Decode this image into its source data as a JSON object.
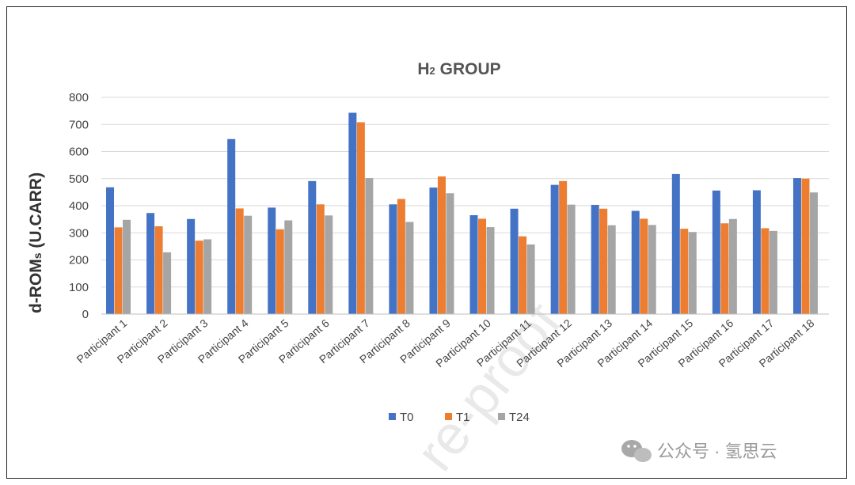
{
  "chart_data": {
    "type": "bar",
    "title_main": "H",
    "title_sub": "2",
    "title_rest": " GROUP",
    "ylabel_main": "d-ROM",
    "ylabel_sub": "s",
    "ylabel_rest": " (U.CARR)",
    "ylim": [
      0,
      800
    ],
    "yticks": [
      "0",
      "100",
      "200",
      "300",
      "400",
      "500",
      "600",
      "700",
      "800"
    ],
    "categories": [
      "Participant 1",
      "Participant 2",
      "Participant 3",
      "Participant 4",
      "Participant 5",
      "Participant 6",
      "Participant 7",
      "Participant 8",
      "Participant 9",
      "Participant 10",
      "Participant 11",
      "Participant 12",
      "Participant 13",
      "Participant 14",
      "Participant 15",
      "Participant 16",
      "Participant 17",
      "Participant 18"
    ],
    "series": [
      {
        "name": "T0",
        "color": "#4472C4",
        "values": [
          468,
          373,
          351,
          646,
          393,
          491,
          743,
          405,
          467,
          365,
          389,
          477,
          403,
          381,
          517,
          456,
          457,
          502
        ]
      },
      {
        "name": "T1",
        "color": "#ED7D31",
        "values": [
          320,
          324,
          271,
          390,
          313,
          405,
          708,
          425,
          508,
          352,
          287,
          491,
          389,
          352,
          315,
          335,
          317,
          500
        ]
      },
      {
        "name": "T24",
        "color": "#A5A5A5",
        "values": [
          348,
          228,
          276,
          363,
          346,
          364,
          502,
          340,
          446,
          321,
          257,
          404,
          328,
          329,
          303,
          351,
          307,
          449
        ]
      }
    ],
    "grid": true,
    "legend": "bottom-center"
  },
  "watermark": {
    "text": "公众号 · 氢思云",
    "diagonal": "re-proof"
  }
}
